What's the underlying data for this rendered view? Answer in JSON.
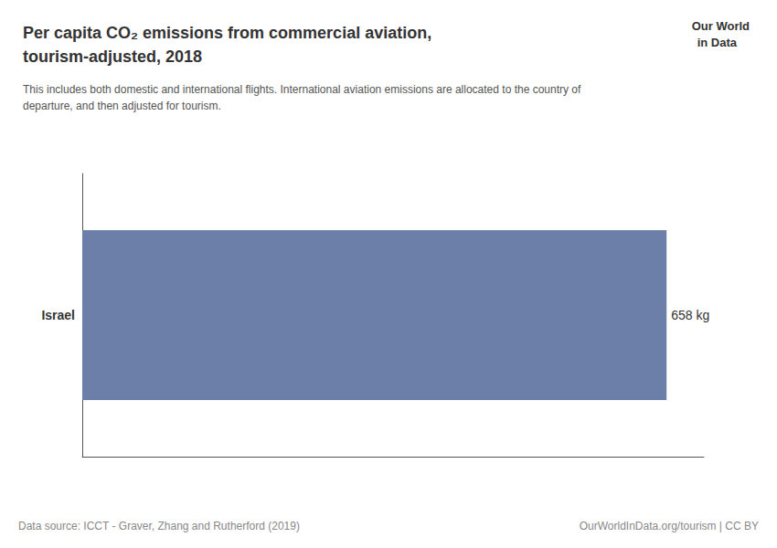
{
  "chart_data": {
    "type": "bar",
    "orientation": "horizontal",
    "title": "Per capita CO₂ emissions from commercial aviation,\ntourism-adjusted, 2018",
    "subtitle": "This includes both domestic and international flights. International aviation emissions are allocated to the country of\ndeparture, and then adjusted for tourism.",
    "categories": [
      "Israel"
    ],
    "values": [
      658
    ],
    "value_labels": [
      "658 kg"
    ],
    "data_labels": true,
    "color": "#6b7fa8",
    "xlim": [
      0,
      700
    ],
    "tick_labels": "y",
    "grid": false,
    "annotations": [
      "Our World",
      "in Data",
      "Data source: ICCT - Graver, Zhang and Rutherford (2019)",
      "OurWorldInData.org/tourism | CC BY"
    ]
  }
}
